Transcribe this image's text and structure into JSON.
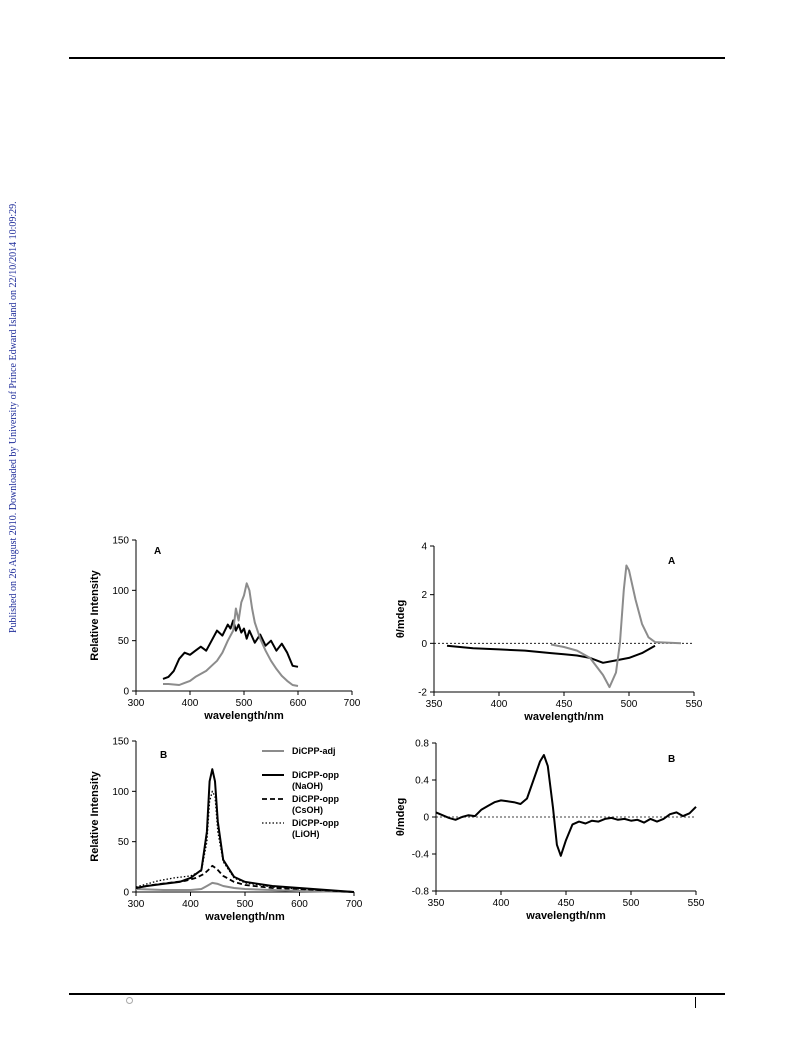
{
  "page": {
    "sidebar_text": "Published on 26 August 2010. Downloaded by University of Prince Edward Island on 22/10/2014 10:09:29."
  },
  "chart_data": [
    {
      "id": "emission-A",
      "type": "line",
      "panel_label": "A",
      "xlabel": "wavelength/nm",
      "ylabel": "Relative Intensity",
      "xlim": [
        300,
        700
      ],
      "ylim": [
        0,
        150
      ],
      "xticks": [
        300,
        400,
        500,
        600,
        700
      ],
      "yticks": [
        0,
        50,
        100,
        150
      ],
      "grid": false,
      "series": [
        {
          "color": "#000000",
          "width": 2,
          "dash": "",
          "points": [
            [
              350,
              12
            ],
            [
              360,
              14
            ],
            [
              370,
              20
            ],
            [
              380,
              32
            ],
            [
              390,
              38
            ],
            [
              400,
              36
            ],
            [
              410,
              40
            ],
            [
              420,
              44
            ],
            [
              430,
              40
            ],
            [
              440,
              50
            ],
            [
              450,
              60
            ],
            [
              460,
              55
            ],
            [
              470,
              66
            ],
            [
              475,
              62
            ],
            [
              480,
              70
            ],
            [
              485,
              60
            ],
            [
              490,
              66
            ],
            [
              495,
              58
            ],
            [
              500,
              62
            ],
            [
              505,
              52
            ],
            [
              510,
              60
            ],
            [
              520,
              48
            ],
            [
              530,
              56
            ],
            [
              540,
              45
            ],
            [
              550,
              50
            ],
            [
              560,
              40
            ],
            [
              570,
              47
            ],
            [
              580,
              38
            ],
            [
              590,
              25
            ],
            [
              600,
              24
            ]
          ]
        },
        {
          "color": "#8c8c8c",
          "width": 2,
          "dash": "",
          "points": [
            [
              350,
              7
            ],
            [
              360,
              7
            ],
            [
              380,
              6
            ],
            [
              390,
              8
            ],
            [
              400,
              10
            ],
            [
              410,
              14
            ],
            [
              420,
              17
            ],
            [
              430,
              20
            ],
            [
              440,
              25
            ],
            [
              450,
              30
            ],
            [
              460,
              38
            ],
            [
              470,
              50
            ],
            [
              480,
              60
            ],
            [
              485,
              82
            ],
            [
              490,
              70
            ],
            [
              495,
              88
            ],
            [
              500,
              95
            ],
            [
              505,
              107
            ],
            [
              510,
              100
            ],
            [
              515,
              82
            ],
            [
              520,
              68
            ],
            [
              530,
              52
            ],
            [
              540,
              40
            ],
            [
              550,
              30
            ],
            [
              560,
              22
            ],
            [
              570,
              15
            ],
            [
              580,
              10
            ],
            [
              590,
              6
            ],
            [
              600,
              5
            ]
          ]
        }
      ]
    },
    {
      "id": "cd-A",
      "type": "line",
      "panel_label": "A",
      "xlabel": "wavelength/nm",
      "ylabel": "θ/mdeg",
      "xlim": [
        350,
        550
      ],
      "ylim": [
        -2,
        4
      ],
      "xticks": [
        350,
        400,
        450,
        500,
        550
      ],
      "yticks": [
        -2,
        0,
        2,
        4
      ],
      "grid": false,
      "zero_line": true,
      "series": [
        {
          "color": "#000000",
          "width": 2,
          "dash": "",
          "points": [
            [
              360,
              -0.1
            ],
            [
              380,
              -0.2
            ],
            [
              400,
              -0.25
            ],
            [
              420,
              -0.3
            ],
            [
              440,
              -0.4
            ],
            [
              450,
              -0.45
            ],
            [
              460,
              -0.5
            ],
            [
              470,
              -0.6
            ],
            [
              480,
              -0.8
            ],
            [
              490,
              -0.7
            ],
            [
              500,
              -0.6
            ],
            [
              510,
              -0.4
            ],
            [
              520,
              -0.1
            ]
          ]
        },
        {
          "color": "#8c8c8c",
          "width": 2,
          "dash": "",
          "points": [
            [
              440,
              -0.05
            ],
            [
              450,
              -0.15
            ],
            [
              460,
              -0.3
            ],
            [
              470,
              -0.6
            ],
            [
              480,
              -1.3
            ],
            [
              485,
              -1.8
            ],
            [
              490,
              -1.2
            ],
            [
              493,
              0
            ],
            [
              496,
              2.2
            ],
            [
              498,
              3.2
            ],
            [
              500,
              3.0
            ],
            [
              505,
              1.8
            ],
            [
              510,
              0.8
            ],
            [
              515,
              0.25
            ],
            [
              520,
              0.05
            ],
            [
              540,
              0
            ]
          ]
        }
      ]
    },
    {
      "id": "emission-B",
      "type": "line",
      "panel_label": "B",
      "xlabel": "wavelength/nm",
      "ylabel": "Relative Intensity",
      "xlim": [
        300,
        700
      ],
      "ylim": [
        0,
        150
      ],
      "xticks": [
        300,
        400,
        500,
        600,
        700
      ],
      "yticks": [
        0,
        50,
        100,
        150
      ],
      "grid": false,
      "legend": "right",
      "series": [
        {
          "legend_lines": [
            "DiCPP-adj"
          ],
          "color": "#8c8c8c",
          "width": 2,
          "dash": "",
          "points": [
            [
              300,
              3
            ],
            [
              350,
              2
            ],
            [
              400,
              2
            ],
            [
              420,
              3
            ],
            [
              430,
              6
            ],
            [
              440,
              9
            ],
            [
              450,
              8
            ],
            [
              460,
              6
            ],
            [
              480,
              4
            ],
            [
              500,
              3
            ],
            [
              600,
              1
            ],
            [
              700,
              0
            ]
          ]
        },
        {
          "legend_lines": [
            "DiCPP-opp",
            "(NaOH)"
          ],
          "color": "#000000",
          "width": 2,
          "dash": "",
          "points": [
            [
              300,
              4
            ],
            [
              320,
              6
            ],
            [
              350,
              8
            ],
            [
              380,
              10
            ],
            [
              400,
              14
            ],
            [
              420,
              22
            ],
            [
              430,
              60
            ],
            [
              435,
              110
            ],
            [
              440,
              122
            ],
            [
              445,
              110
            ],
            [
              450,
              70
            ],
            [
              460,
              32
            ],
            [
              480,
              15
            ],
            [
              500,
              10
            ],
            [
              550,
              6
            ],
            [
              600,
              4
            ],
            [
              650,
              2
            ],
            [
              700,
              0
            ]
          ]
        },
        {
          "legend_lines": [
            "DiCPP-opp",
            "(CsOH)"
          ],
          "color": "#000000",
          "width": 1.8,
          "dash": "5,3",
          "points": [
            [
              300,
              4
            ],
            [
              330,
              7
            ],
            [
              360,
              9
            ],
            [
              390,
              11
            ],
            [
              410,
              14
            ],
            [
              425,
              18
            ],
            [
              435,
              23
            ],
            [
              440,
              26
            ],
            [
              448,
              23
            ],
            [
              460,
              16
            ],
            [
              480,
              10
            ],
            [
              500,
              7
            ],
            [
              550,
              4
            ],
            [
              600,
              3
            ],
            [
              700,
              0
            ]
          ]
        },
        {
          "legend_lines": [
            "DiCPP-opp",
            "(LiOH)"
          ],
          "color": "#000000",
          "width": 1.3,
          "dash": "1.5,2",
          "points": [
            [
              300,
              5
            ],
            [
              340,
              11
            ],
            [
              370,
              14
            ],
            [
              400,
              16
            ],
            [
              420,
              21
            ],
            [
              430,
              50
            ],
            [
              435,
              90
            ],
            [
              440,
              100
            ],
            [
              445,
              95
            ],
            [
              450,
              60
            ],
            [
              460,
              30
            ],
            [
              480,
              14
            ],
            [
              500,
              9
            ],
            [
              550,
              5
            ],
            [
              600,
              3
            ],
            [
              700,
              0
            ]
          ]
        }
      ]
    },
    {
      "id": "cd-B",
      "type": "line",
      "panel_label": "B",
      "xlabel": "wavelength/nm",
      "ylabel": "θ/mdeg",
      "xlim": [
        350,
        550
      ],
      "ylim": [
        -0.8,
        0.8
      ],
      "xticks": [
        350,
        400,
        450,
        500,
        550
      ],
      "yticks": [
        -0.8,
        -0.4,
        0,
        0.4,
        0.8
      ],
      "ytick_labels": [
        "-0.8",
        "-0.4",
        "0",
        "0.4",
        "0.8"
      ],
      "grid": false,
      "zero_line": true,
      "series": [
        {
          "color": "#000000",
          "width": 2,
          "dash": "",
          "points": [
            [
              350,
              0.05
            ],
            [
              355,
              0.02
            ],
            [
              360,
              -0.01
            ],
            [
              365,
              -0.03
            ],
            [
              370,
              0
            ],
            [
              375,
              0.02
            ],
            [
              380,
              0.01
            ],
            [
              385,
              0.08
            ],
            [
              390,
              0.12
            ],
            [
              395,
              0.16
            ],
            [
              400,
              0.18
            ],
            [
              405,
              0.17
            ],
            [
              410,
              0.16
            ],
            [
              415,
              0.14
            ],
            [
              420,
              0.2
            ],
            [
              425,
              0.4
            ],
            [
              430,
              0.6
            ],
            [
              433,
              0.67
            ],
            [
              436,
              0.55
            ],
            [
              440,
              0.1
            ],
            [
              443,
              -0.3
            ],
            [
              446,
              -0.42
            ],
            [
              450,
              -0.25
            ],
            [
              455,
              -0.08
            ],
            [
              460,
              -0.05
            ],
            [
              465,
              -0.07
            ],
            [
              470,
              -0.04
            ],
            [
              475,
              -0.05
            ],
            [
              480,
              -0.02
            ],
            [
              485,
              -0.01
            ],
            [
              490,
              -0.03
            ],
            [
              495,
              -0.02
            ],
            [
              500,
              -0.04
            ],
            [
              505,
              -0.03
            ],
            [
              510,
              -0.06
            ],
            [
              515,
              -0.02
            ],
            [
              520,
              -0.05
            ],
            [
              525,
              -0.02
            ],
            [
              530,
              0.03
            ],
            [
              535,
              0.05
            ],
            [
              540,
              0.01
            ],
            [
              545,
              0.04
            ],
            [
              550,
              0.11
            ]
          ]
        }
      ]
    }
  ]
}
